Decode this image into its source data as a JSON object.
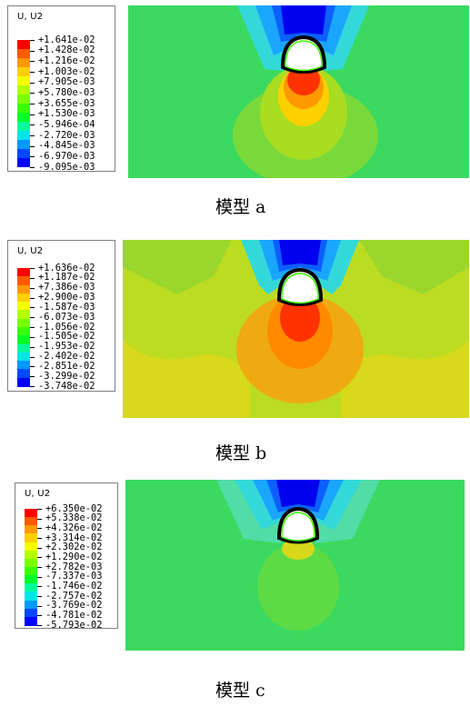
{
  "panels": [
    {
      "caption": "模型 a",
      "legend": {
        "title": "U, U2",
        "colors": [
          "#ff0000",
          "#ff5a00",
          "#ff9900",
          "#ffd000",
          "#f5ff00",
          "#b5ff00",
          "#7aff00",
          "#3cff00",
          "#00ff2a",
          "#00ff9c",
          "#00e6e6",
          "#0099ff",
          "#0048ff",
          "#0000ff"
        ],
        "values": [
          "+1.641e-02",
          "+1.428e-02",
          "+1.216e-02",
          "+1.003e-02",
          "+7.905e-03",
          "+5.780e-03",
          "+3.655e-03",
          "+1.530e-03",
          "-5.946e-04",
          "-2.720e-03",
          "-4.845e-03",
          "-6.970e-03",
          "-9.095e-03"
        ]
      }
    },
    {
      "caption": "模型 b",
      "legend": {
        "title": "U, U2",
        "colors": [
          "#ff0000",
          "#ff5a00",
          "#ff9900",
          "#ffd000",
          "#f5ff00",
          "#b5ff00",
          "#7aff00",
          "#3cff00",
          "#00ff2a",
          "#00ff9c",
          "#00e6e6",
          "#0099ff",
          "#0048ff",
          "#0000ff"
        ],
        "values": [
          "+1.636e-02",
          "+1.187e-02",
          "+7.386e-03",
          "+2.900e-03",
          "-1.587e-03",
          "-6.073e-03",
          "-1.056e-02",
          "-1.505e-02",
          "-1.953e-02",
          "-2.402e-02",
          "-2.851e-02",
          "-3.299e-02",
          "-3.748e-02"
        ]
      }
    },
    {
      "caption": "模型 c",
      "legend": {
        "title": "U, U2",
        "colors": [
          "#ff0000",
          "#ff5a00",
          "#ff9900",
          "#ffd000",
          "#f5ff00",
          "#b5ff00",
          "#7aff00",
          "#3cff00",
          "#00ff2a",
          "#00ff9c",
          "#00e6e6",
          "#0099ff",
          "#0048ff",
          "#0000ff"
        ],
        "values": [
          "+6.350e-02",
          "+5.338e-02",
          "+4.326e-02",
          "+3.314e-02",
          "+2.302e-02",
          "+1.290e-02",
          "+2.782e-03",
          "-7.337e-03",
          "-1.746e-02",
          "-2.757e-02",
          "-3.769e-02",
          "-4.781e-02",
          "-5.793e-02"
        ]
      }
    }
  ]
}
